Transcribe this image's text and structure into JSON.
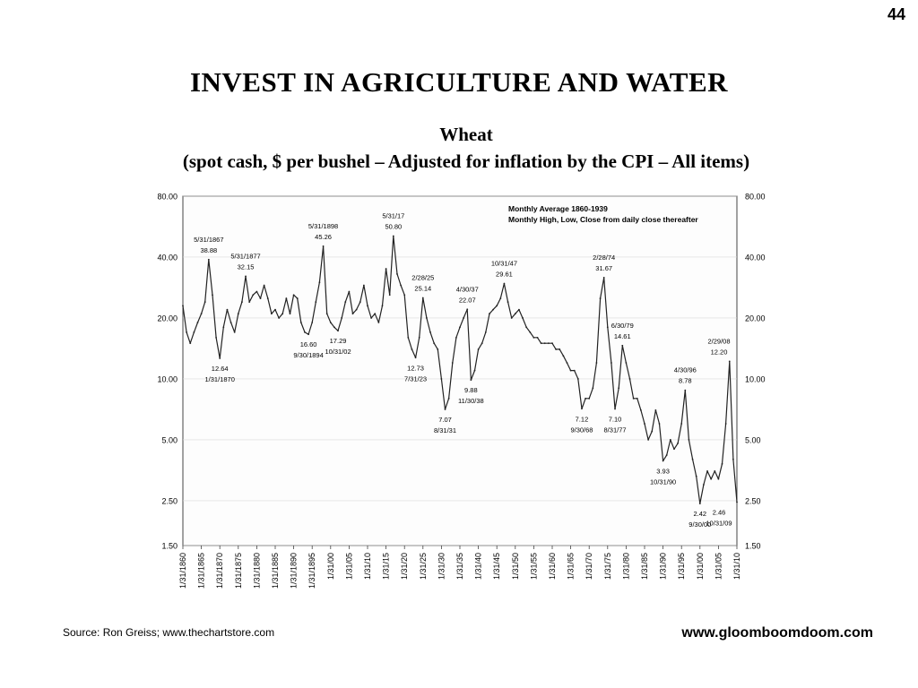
{
  "page_number": "44",
  "title": "INVEST  IN  AGRICULTURE  AND  WATER",
  "footer": {
    "source": "Source:  Ron Greiss; www.thechartstore.com",
    "website": "www.gloomboomdoom.com"
  },
  "chart_data": {
    "type": "line",
    "title": "Wheat",
    "subtitle": "(spot cash, $ per bushel – Adjusted for inflation by the CPI – All items)",
    "note": [
      "Monthly Average 1860-1939",
      "Monthly High, Low, Close from daily close thereafter"
    ],
    "y_scale": "log",
    "ylim": [
      1.5,
      80
    ],
    "y_ticks": [
      1.5,
      2.5,
      5,
      10,
      20,
      40,
      80
    ],
    "y_tick_labels": [
      "1.50",
      "2.50",
      "5.00",
      "10.00",
      "20.00",
      "40.00",
      "80.00"
    ],
    "xlim": [
      1860,
      2010
    ],
    "x_tick_labels": [
      "1/31/1860",
      "1/31/1865",
      "1/31/1870",
      "1/31/1875",
      "1/31/1880",
      "1/31/1885",
      "1/31/1890",
      "1/31/1895",
      "1/31/00",
      "1/31/05",
      "1/31/10",
      "1/31/15",
      "1/31/20",
      "1/31/25",
      "1/31/30",
      "1/31/35",
      "1/31/40",
      "1/31/45",
      "1/31/50",
      "1/31/55",
      "1/31/60",
      "1/31/65",
      "1/31/70",
      "1/31/75",
      "1/31/80",
      "1/31/85",
      "1/31/90",
      "1/31/95",
      "1/31/00",
      "1/31/05",
      "1/31/10"
    ],
    "series": [
      {
        "points": [
          [
            1860,
            23
          ],
          [
            1861,
            17
          ],
          [
            1862,
            15
          ],
          [
            1863,
            17
          ],
          [
            1864,
            19
          ],
          [
            1865,
            21
          ],
          [
            1866,
            24
          ],
          [
            1867,
            38.88
          ],
          [
            1868,
            26
          ],
          [
            1869,
            16
          ],
          [
            1870,
            12.64
          ],
          [
            1871,
            18
          ],
          [
            1872,
            22
          ],
          [
            1873,
            19
          ],
          [
            1874,
            17
          ],
          [
            1875,
            21
          ],
          [
            1876,
            24
          ],
          [
            1877,
            32.15
          ],
          [
            1878,
            24
          ],
          [
            1879,
            26
          ],
          [
            1880,
            27
          ],
          [
            1881,
            25
          ],
          [
            1882,
            29
          ],
          [
            1883,
            25
          ],
          [
            1884,
            21
          ],
          [
            1885,
            22
          ],
          [
            1886,
            20
          ],
          [
            1887,
            21
          ],
          [
            1888,
            25
          ],
          [
            1889,
            21
          ],
          [
            1890,
            26
          ],
          [
            1891,
            25
          ],
          [
            1892,
            19
          ],
          [
            1893,
            17
          ],
          [
            1894,
            16.6
          ],
          [
            1895,
            19
          ],
          [
            1896,
            24
          ],
          [
            1897,
            30
          ],
          [
            1898,
            45.26
          ],
          [
            1899,
            21
          ],
          [
            1900,
            19
          ],
          [
            1901,
            18
          ],
          [
            1902,
            17.29
          ],
          [
            1903,
            20
          ],
          [
            1904,
            24
          ],
          [
            1905,
            27
          ],
          [
            1906,
            21
          ],
          [
            1907,
            22
          ],
          [
            1908,
            24
          ],
          [
            1909,
            29
          ],
          [
            1910,
            23
          ],
          [
            1911,
            20
          ],
          [
            1912,
            21
          ],
          [
            1913,
            19
          ],
          [
            1914,
            23
          ],
          [
            1915,
            35
          ],
          [
            1916,
            26
          ],
          [
            1917,
            50.8
          ],
          [
            1918,
            33
          ],
          [
            1919,
            29
          ],
          [
            1920,
            26
          ],
          [
            1921,
            16
          ],
          [
            1922,
            14
          ],
          [
            1923,
            12.73
          ],
          [
            1924,
            16
          ],
          [
            1925,
            25.14
          ],
          [
            1926,
            20
          ],
          [
            1927,
            17
          ],
          [
            1928,
            15
          ],
          [
            1929,
            14
          ],
          [
            1930,
            10
          ],
          [
            1931,
            7.07
          ],
          [
            1932,
            8
          ],
          [
            1933,
            12
          ],
          [
            1934,
            16
          ],
          [
            1935,
            18
          ],
          [
            1936,
            20
          ],
          [
            1937,
            22.07
          ],
          [
            1938,
            9.88
          ],
          [
            1939,
            11
          ],
          [
            1940,
            14
          ],
          [
            1941,
            15
          ],
          [
            1942,
            17
          ],
          [
            1943,
            21
          ],
          [
            1944,
            22
          ],
          [
            1945,
            23
          ],
          [
            1946,
            25
          ],
          [
            1947,
            29.61
          ],
          [
            1948,
            24
          ],
          [
            1949,
            20
          ],
          [
            1950,
            21
          ],
          [
            1951,
            22
          ],
          [
            1952,
            20
          ],
          [
            1953,
            18
          ],
          [
            1954,
            17
          ],
          [
            1955,
            16
          ],
          [
            1956,
            16
          ],
          [
            1957,
            15
          ],
          [
            1958,
            15
          ],
          [
            1959,
            15
          ],
          [
            1960,
            15
          ],
          [
            1961,
            14
          ],
          [
            1962,
            14
          ],
          [
            1963,
            13
          ],
          [
            1964,
            12
          ],
          [
            1965,
            11
          ],
          [
            1966,
            11
          ],
          [
            1967,
            10
          ],
          [
            1968,
            7.12
          ],
          [
            1969,
            8
          ],
          [
            1970,
            8
          ],
          [
            1971,
            9
          ],
          [
            1972,
            12
          ],
          [
            1973,
            25
          ],
          [
            1974,
            31.67
          ],
          [
            1975,
            18
          ],
          [
            1976,
            12
          ],
          [
            1977,
            7.1
          ],
          [
            1978,
            9
          ],
          [
            1979,
            14.61
          ],
          [
            1980,
            12
          ],
          [
            1981,
            10
          ],
          [
            1982,
            8
          ],
          [
            1983,
            8
          ],
          [
            1984,
            7
          ],
          [
            1985,
            6
          ],
          [
            1986,
            5
          ],
          [
            1987,
            5.5
          ],
          [
            1988,
            7
          ],
          [
            1989,
            6
          ],
          [
            1990,
            3.93
          ],
          [
            1991,
            4.2
          ],
          [
            1992,
            5
          ],
          [
            1993,
            4.5
          ],
          [
            1994,
            4.8
          ],
          [
            1995,
            6
          ],
          [
            1996,
            8.78
          ],
          [
            1997,
            5
          ],
          [
            1998,
            4
          ],
          [
            1999,
            3.3
          ],
          [
            2000,
            2.42
          ],
          [
            2001,
            3
          ],
          [
            2002,
            3.5
          ],
          [
            2003,
            3.2
          ],
          [
            2004,
            3.5
          ],
          [
            2005,
            3.2
          ],
          [
            2006,
            3.8
          ],
          [
            2007,
            6
          ],
          [
            2008,
            12.2
          ],
          [
            2009,
            4
          ],
          [
            2010,
            2.46
          ]
        ]
      }
    ],
    "annotations": [
      {
        "date": "5/31/1867",
        "value": "38.88",
        "x": 1867,
        "y": 38.88,
        "pos": "above"
      },
      {
        "date": "1/31/1870",
        "value": "12.64",
        "x": 1870,
        "y": 12.64,
        "pos": "below"
      },
      {
        "date": "5/31/1877",
        "value": "32.15",
        "x": 1877,
        "y": 32.15,
        "pos": "above"
      },
      {
        "date": "9/30/1894",
        "value": "16.60",
        "x": 1894,
        "y": 16.6,
        "pos": "below"
      },
      {
        "date": "5/31/1898",
        "value": "45.26",
        "x": 1898,
        "y": 45.26,
        "pos": "above"
      },
      {
        "date": "10/31/02",
        "value": "17.29",
        "x": 1902,
        "y": 17.29,
        "pos": "below"
      },
      {
        "date": "5/31/17",
        "value": "50.80",
        "x": 1917,
        "y": 50.8,
        "pos": "above"
      },
      {
        "date": "7/31/23",
        "value": "12.73",
        "x": 1923,
        "y": 12.73,
        "pos": "below"
      },
      {
        "date": "2/28/25",
        "value": "25.14",
        "x": 1925,
        "y": 25.14,
        "pos": "above"
      },
      {
        "date": "8/31/31",
        "value": "7.07",
        "x": 1931,
        "y": 7.07,
        "pos": "below"
      },
      {
        "date": "4/30/37",
        "value": "22.07",
        "x": 1937,
        "y": 22.07,
        "pos": "above"
      },
      {
        "date": "11/30/38",
        "value": "9.88",
        "x": 1938,
        "y": 9.88,
        "pos": "below"
      },
      {
        "date": "10/31/47",
        "value": "29.61",
        "x": 1947,
        "y": 29.61,
        "pos": "above"
      },
      {
        "date": "9/30/68",
        "value": "7.12",
        "x": 1968,
        "y": 7.12,
        "pos": "below"
      },
      {
        "date": "2/28/74",
        "value": "31.67",
        "x": 1974,
        "y": 31.67,
        "pos": "above"
      },
      {
        "date": "8/31/77",
        "value": "7.10",
        "x": 1977,
        "y": 7.1,
        "pos": "below"
      },
      {
        "date": "6/30/79",
        "value": "14.61",
        "x": 1979,
        "y": 14.61,
        "pos": "above"
      },
      {
        "date": "10/31/90",
        "value": "3.93",
        "x": 1990,
        "y": 3.93,
        "pos": "below"
      },
      {
        "date": "4/30/96",
        "value": "8.78",
        "x": 1996,
        "y": 8.78,
        "pos": "above"
      },
      {
        "date": "9/30/00",
        "value": "2.42",
        "x": 2000,
        "y": 2.42,
        "pos": "below"
      },
      {
        "date": "2/29/08",
        "value": "12.20",
        "x": 2008,
        "y": 12.2,
        "pos": "above"
      },
      {
        "date": "10/31/09",
        "value": "2.46",
        "x": 2010,
        "y": 2.46,
        "pos": "below"
      }
    ],
    "grid": false,
    "legend": "none"
  }
}
